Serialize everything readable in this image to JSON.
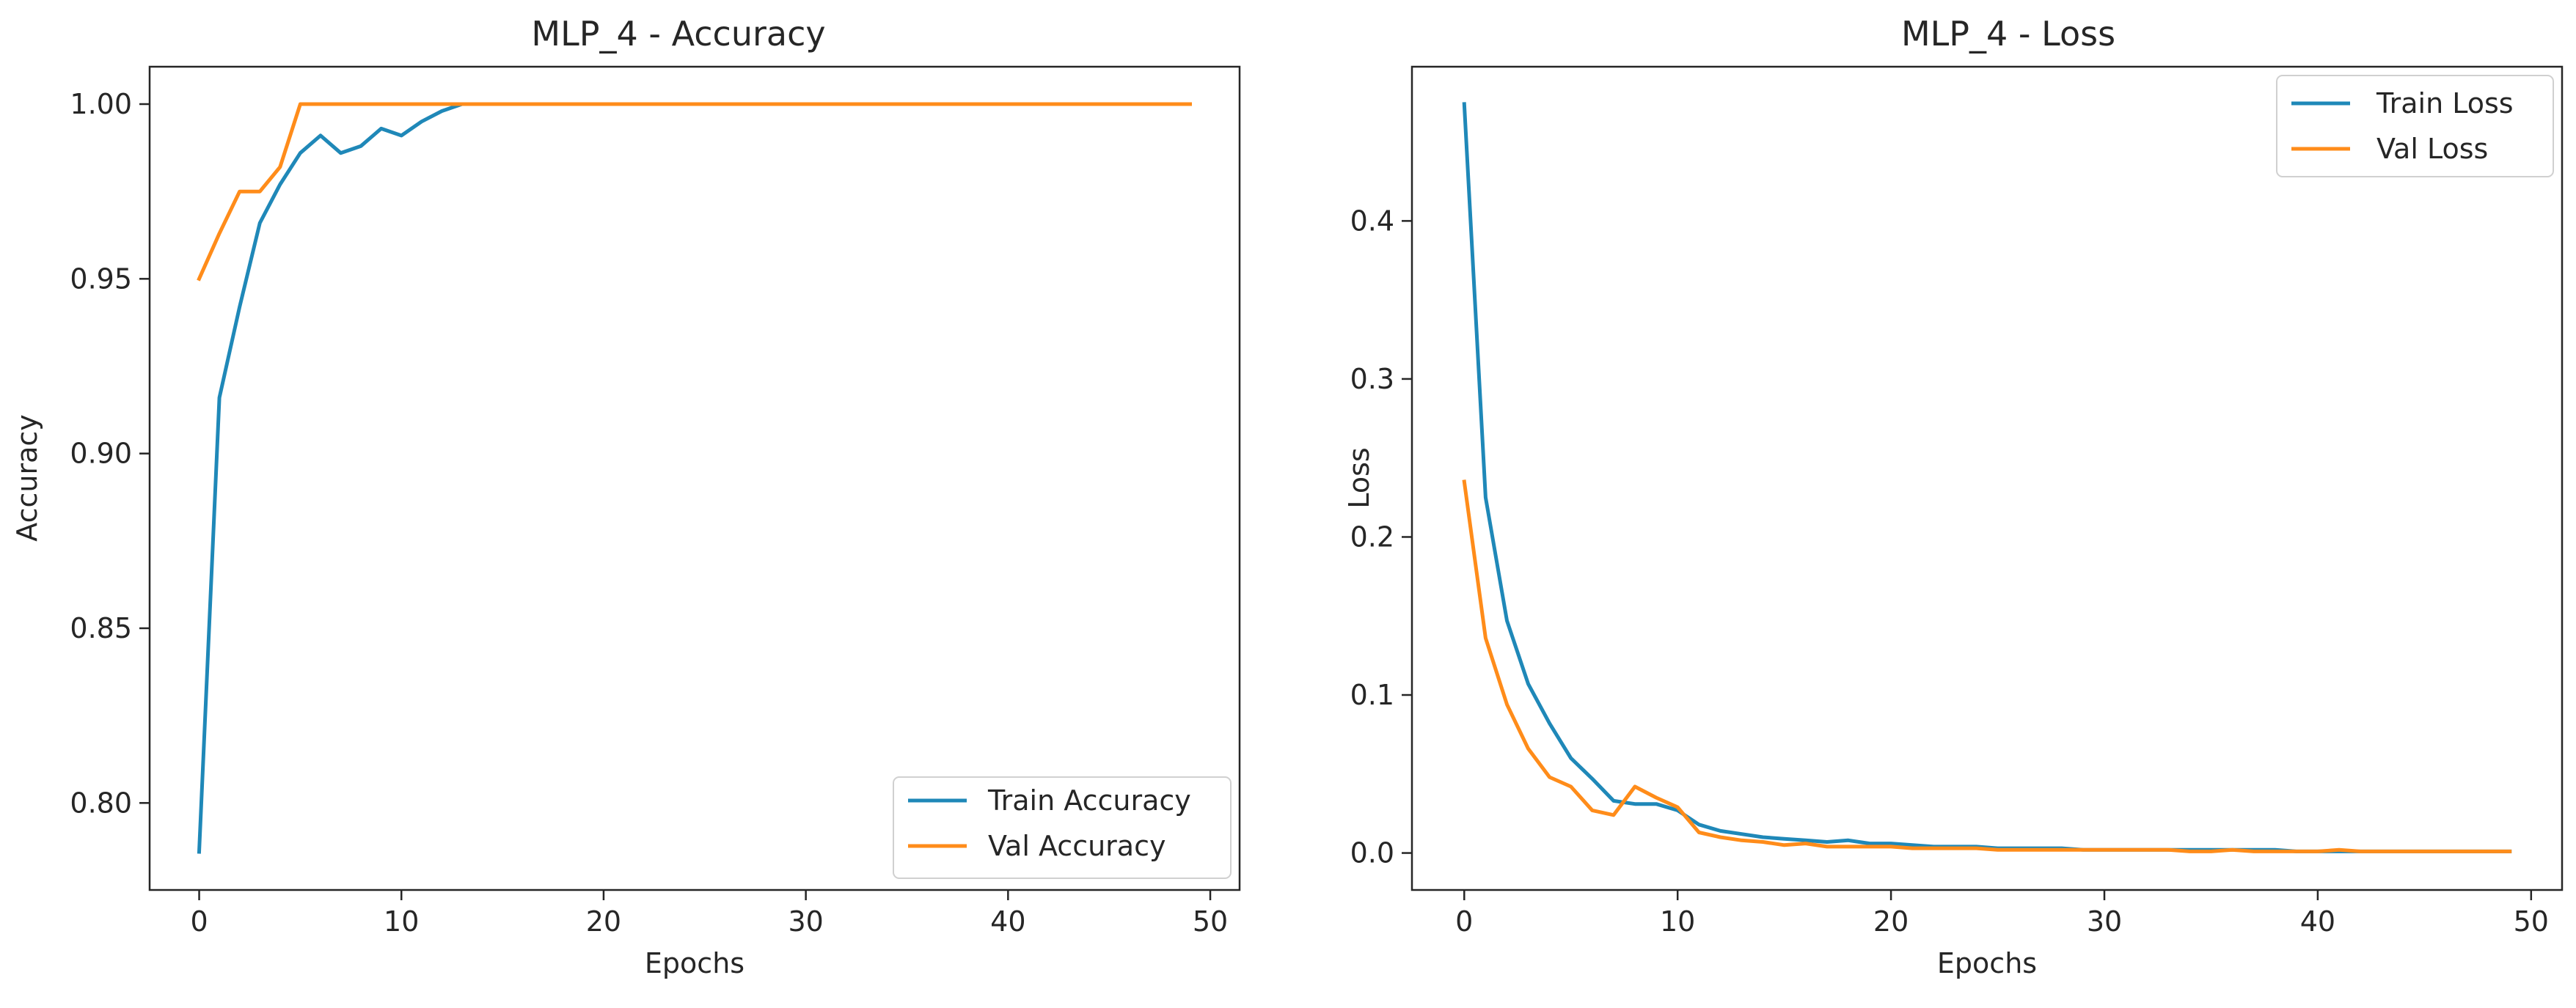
{
  "colors": {
    "train": "#1f88b8",
    "val": "#ff8c1a",
    "axis": "#262626",
    "background": "#ffffff"
  },
  "chart_data": [
    {
      "type": "line",
      "title": "MLP_4 - Accuracy",
      "xlabel": "Epochs",
      "ylabel": "Accuracy",
      "xlim": [
        -2.45,
        51.45
      ],
      "ylim": [
        0.7751,
        1.0107
      ],
      "xticks": [
        0,
        10,
        20,
        30,
        40,
        50
      ],
      "xtick_labels": [
        "0",
        "10",
        "20",
        "30",
        "40",
        "50"
      ],
      "yticks": [
        0.8,
        0.85,
        0.9,
        0.95,
        1.0
      ],
      "ytick_labels": [
        "0.80",
        "0.85",
        "0.90",
        "0.95",
        "1.00"
      ],
      "grid": false,
      "legend_position": "lower-right",
      "x": [
        0,
        1,
        2,
        3,
        4,
        5,
        6,
        7,
        8,
        9,
        10,
        11,
        12,
        13,
        14,
        15,
        16,
        17,
        18,
        19,
        20,
        21,
        22,
        23,
        24,
        25,
        26,
        27,
        28,
        29,
        30,
        31,
        32,
        33,
        34,
        35,
        36,
        37,
        38,
        39,
        40,
        41,
        42,
        43,
        44,
        45,
        46,
        47,
        48,
        49
      ],
      "series": [
        {
          "name": "Train Accuracy",
          "values": [
            0.786,
            0.916,
            0.942,
            0.966,
            0.977,
            0.986,
            0.991,
            0.986,
            0.988,
            0.993,
            0.991,
            0.995,
            0.998,
            1.0,
            1.0,
            1.0,
            1.0,
            1.0,
            1.0,
            1.0,
            1.0,
            1.0,
            1.0,
            1.0,
            1.0,
            1.0,
            1.0,
            1.0,
            1.0,
            1.0,
            1.0,
            1.0,
            1.0,
            1.0,
            1.0,
            1.0,
            1.0,
            1.0,
            1.0,
            1.0,
            1.0,
            1.0,
            1.0,
            1.0,
            1.0,
            1.0,
            1.0,
            1.0,
            1.0,
            1.0
          ]
        },
        {
          "name": "Val Accuracy",
          "values": [
            0.95,
            0.963,
            0.975,
            0.975,
            0.982,
            1.0,
            1.0,
            1.0,
            1.0,
            1.0,
            1.0,
            1.0,
            1.0,
            1.0,
            1.0,
            1.0,
            1.0,
            1.0,
            1.0,
            1.0,
            1.0,
            1.0,
            1.0,
            1.0,
            1.0,
            1.0,
            1.0,
            1.0,
            1.0,
            1.0,
            1.0,
            1.0,
            1.0,
            1.0,
            1.0,
            1.0,
            1.0,
            1.0,
            1.0,
            1.0,
            1.0,
            1.0,
            1.0,
            1.0,
            1.0,
            1.0,
            1.0,
            1.0,
            1.0,
            1.0
          ]
        }
      ]
    },
    {
      "type": "line",
      "title": "MLP_4 - Loss",
      "xlabel": "Epochs",
      "ylabel": "Loss",
      "xlim": [
        -2.45,
        51.45
      ],
      "ylim": [
        -0.0234,
        0.4976
      ],
      "xticks": [
        0,
        10,
        20,
        30,
        40,
        50
      ],
      "xtick_labels": [
        "0",
        "10",
        "20",
        "30",
        "40",
        "50"
      ],
      "yticks": [
        0.0,
        0.1,
        0.2,
        0.3,
        0.4
      ],
      "ytick_labels": [
        "0.0",
        "0.1",
        "0.2",
        "0.3",
        "0.4"
      ],
      "grid": false,
      "legend_position": "upper-right",
      "x": [
        0,
        1,
        2,
        3,
        4,
        5,
        6,
        7,
        8,
        9,
        10,
        11,
        12,
        13,
        14,
        15,
        16,
        17,
        18,
        19,
        20,
        21,
        22,
        23,
        24,
        25,
        26,
        27,
        28,
        29,
        30,
        31,
        32,
        33,
        34,
        35,
        36,
        37,
        38,
        39,
        40,
        41,
        42,
        43,
        44,
        45,
        46,
        47,
        48,
        49
      ],
      "series": [
        {
          "name": "Train Loss",
          "values": [
            0.474,
            0.225,
            0.147,
            0.107,
            0.082,
            0.06,
            0.047,
            0.033,
            0.031,
            0.031,
            0.027,
            0.018,
            0.014,
            0.012,
            0.01,
            0.009,
            0.008,
            0.007,
            0.008,
            0.006,
            0.006,
            0.005,
            0.004,
            0.004,
            0.004,
            0.003,
            0.003,
            0.003,
            0.003,
            0.002,
            0.002,
            0.002,
            0.002,
            0.002,
            0.002,
            0.002,
            0.002,
            0.002,
            0.002,
            0.001,
            0.001,
            0.001,
            0.001,
            0.001,
            0.001,
            0.001,
            0.001,
            0.001,
            0.001,
            0.001
          ]
        },
        {
          "name": "Val Loss",
          "values": [
            0.235,
            0.136,
            0.094,
            0.066,
            0.048,
            0.042,
            0.027,
            0.024,
            0.042,
            0.035,
            0.029,
            0.013,
            0.01,
            0.008,
            0.007,
            0.005,
            0.006,
            0.004,
            0.004,
            0.004,
            0.004,
            0.003,
            0.003,
            0.003,
            0.003,
            0.002,
            0.002,
            0.002,
            0.002,
            0.002,
            0.002,
            0.002,
            0.002,
            0.002,
            0.001,
            0.001,
            0.002,
            0.001,
            0.001,
            0.001,
            0.001,
            0.002,
            0.001,
            0.001,
            0.001,
            0.001,
            0.001,
            0.001,
            0.001,
            0.001
          ]
        }
      ]
    }
  ]
}
